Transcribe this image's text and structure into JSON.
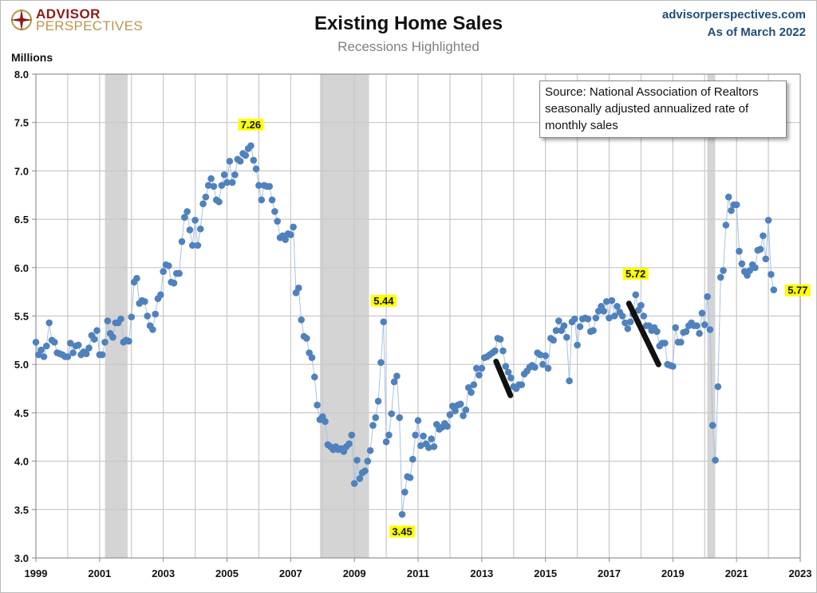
{
  "header": {
    "brand_line1": "ADVISOR",
    "brand_line2": "PERSPECTIVES",
    "site": "advisorperspectives.com",
    "as_of": "As of March 2022"
  },
  "chart_data": {
    "type": "line",
    "title": "Existing Home Sales",
    "subtitle": "Recessions Highlighted",
    "ylabel": "Millions",
    "xlabel": "",
    "xlim": [
      1999,
      2023
    ],
    "ylim": [
      3.0,
      8.0
    ],
    "grid": true,
    "x_ticks": [
      "1999",
      "2001",
      "2003",
      "2005",
      "2007",
      "2009",
      "2011",
      "2013",
      "2015",
      "2017",
      "2019",
      "2021",
      "2023"
    ],
    "y_ticks": [
      "3.0",
      "3.5",
      "4.0",
      "4.5",
      "5.0",
      "5.5",
      "6.0",
      "6.5",
      "7.0",
      "7.5",
      "8.0"
    ],
    "source_note": "Source: National Association of Realtors seasonally adjusted annualized rate of monthly sales",
    "series": [
      {
        "name": "Existing Home Sales",
        "color": "#4f81bd",
        "start": "1999-01",
        "frequency": "monthly",
        "values": [
          5.23,
          5.1,
          5.15,
          5.08,
          5.19,
          5.43,
          5.25,
          5.23,
          5.12,
          5.11,
          5.1,
          5.08,
          5.08,
          5.22,
          5.12,
          5.19,
          5.2,
          5.1,
          5.13,
          5.11,
          5.17,
          5.3,
          5.26,
          5.35,
          5.1,
          5.1,
          5.23,
          5.45,
          5.32,
          5.28,
          5.43,
          5.43,
          5.47,
          5.23,
          5.25,
          5.24,
          5.49,
          5.85,
          5.89,
          5.63,
          5.66,
          5.65,
          5.5,
          5.4,
          5.36,
          5.52,
          5.68,
          5.72,
          5.96,
          6.03,
          6.02,
          5.85,
          5.84,
          5.94,
          5.94,
          6.27,
          6.52,
          6.58,
          6.39,
          6.23,
          6.49,
          6.23,
          6.4,
          6.66,
          6.73,
          6.85,
          6.92,
          6.84,
          6.7,
          6.68,
          6.85,
          6.96,
          6.88,
          7.1,
          6.88,
          6.96,
          7.12,
          7.1,
          7.18,
          7.16,
          7.23,
          7.26,
          7.11,
          7.02,
          6.85,
          6.7,
          6.85,
          6.84,
          6.84,
          6.7,
          6.58,
          6.48,
          6.31,
          6.33,
          6.29,
          6.35,
          6.34,
          6.42,
          5.74,
          5.79,
          5.46,
          5.29,
          5.27,
          5.12,
          5.07,
          4.87,
          4.58,
          4.43,
          4.46,
          4.41,
          4.17,
          4.15,
          4.12,
          4.15,
          4.12,
          4.13,
          4.1,
          4.15,
          4.18,
          4.27,
          3.77,
          4.01,
          3.82,
          3.88,
          3.9,
          4.0,
          4.11,
          4.37,
          4.45,
          4.62,
          5.02,
          5.44,
          4.2,
          4.27,
          4.49,
          4.82,
          4.88,
          4.45,
          3.45,
          3.68,
          3.84,
          3.83,
          4.02,
          4.27,
          4.42,
          4.16,
          4.26,
          4.18,
          4.14,
          4.23,
          4.15,
          4.38,
          4.33,
          4.35,
          4.39,
          4.36,
          4.48,
          4.57,
          4.52,
          4.58,
          4.59,
          4.47,
          4.53,
          4.76,
          4.71,
          4.79,
          4.96,
          4.89,
          4.96,
          5.07,
          5.08,
          5.1,
          5.12,
          5.14,
          5.27,
          5.26,
          5.14,
          4.98,
          4.92,
          4.86,
          4.77,
          4.75,
          4.79,
          4.79,
          4.9,
          4.93,
          4.97,
          4.99,
          4.97,
          5.12,
          5.1,
          5.0,
          5.09,
          4.96,
          5.27,
          5.25,
          5.35,
          5.45,
          5.35,
          5.4,
          5.28,
          4.83,
          5.44,
          5.47,
          5.2,
          5.39,
          5.47,
          5.48,
          5.47,
          5.34,
          5.35,
          5.48,
          5.55,
          5.6,
          5.55,
          5.65,
          5.48,
          5.66,
          5.5,
          5.6,
          5.54,
          5.5,
          5.43,
          5.37,
          5.44,
          5.52,
          5.72,
          5.56,
          5.61,
          5.5,
          5.4,
          5.4,
          5.35,
          5.38,
          5.34,
          5.19,
          5.22,
          5.22,
          5.0,
          4.99,
          4.98,
          5.38,
          5.23,
          5.23,
          5.33,
          5.34,
          5.4,
          5.43,
          5.4,
          5.4,
          5.32,
          5.53,
          5.41,
          5.7,
          5.36,
          4.37,
          4.01,
          4.77,
          5.9,
          5.97,
          6.44,
          6.73,
          6.59,
          6.65,
          6.65,
          6.17,
          6.04,
          5.96,
          5.92,
          5.97,
          6.03,
          6.0,
          6.18,
          6.19,
          6.33,
          6.09,
          6.49,
          5.93,
          5.77
        ]
      }
    ],
    "recessions": [
      {
        "start": 2001.17,
        "end": 2001.88
      },
      {
        "start": 2007.92,
        "end": 2009.46
      },
      {
        "start": 2020.08,
        "end": 2020.33
      }
    ],
    "data_labels": [
      {
        "text": "7.26",
        "x": 2005.75,
        "y": 7.26,
        "pos": "above"
      },
      {
        "text": "5.44",
        "x": 2009.92,
        "y": 5.44,
        "pos": "above"
      },
      {
        "text": "3.45",
        "x": 2010.5,
        "y": 3.45,
        "pos": "below"
      },
      {
        "text": "5.72",
        "x": 2017.83,
        "y": 5.72,
        "pos": "above"
      },
      {
        "text": "5.77",
        "x": 2022.17,
        "y": 5.77,
        "pos": "right"
      }
    ],
    "trend_marks": [
      {
        "x1": 2013.45,
        "y1": 5.03,
        "x2": 2013.9,
        "y2": 4.68
      },
      {
        "x1": 2017.62,
        "y1": 5.63,
        "x2": 2018.55,
        "y2": 5.0
      }
    ]
  }
}
